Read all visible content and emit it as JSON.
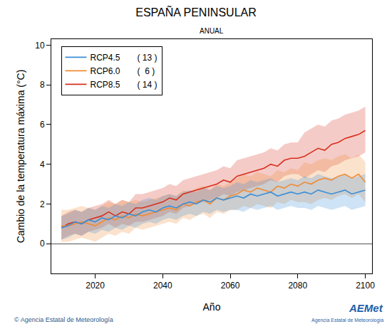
{
  "chart_data": {
    "type": "line",
    "title": "ESPAÑA PENINSULAR",
    "subtitle": "ANUAL",
    "x_label": "Año",
    "y_label": "Cambio de la temperatura máxima (°C)",
    "source": "© Agencia Estatal de Meteorología",
    "logo": "AEMet",
    "logo_caption": "Agencia Estatal de Meteorología",
    "x": [
      2010,
      2012,
      2014,
      2016,
      2018,
      2020,
      2022,
      2024,
      2026,
      2028,
      2030,
      2032,
      2034,
      2036,
      2038,
      2040,
      2042,
      2044,
      2046,
      2048,
      2050,
      2052,
      2054,
      2056,
      2058,
      2060,
      2062,
      2064,
      2066,
      2068,
      2070,
      2072,
      2074,
      2076,
      2078,
      2080,
      2082,
      2084,
      2086,
      2088,
      2090,
      2092,
      2094,
      2096,
      2098,
      2100
    ],
    "xlim": [
      2007,
      2102
    ],
    "xticks": [
      2020,
      2040,
      2060,
      2080,
      2100
    ],
    "ylim": [
      -1.5,
      10.3
    ],
    "yticks": [
      0,
      2,
      4,
      6,
      8,
      10
    ],
    "grid": false,
    "legend": "top left",
    "series": [
      {
        "name": "RCP8.5",
        "count_label": "( 14 )",
        "color": "#d7301f",
        "values": [
          0.8,
          1.0,
          1.1,
          1.0,
          1.2,
          1.3,
          1.4,
          1.6,
          1.4,
          1.6,
          1.5,
          1.8,
          1.8,
          1.9,
          2.0,
          2.1,
          2.3,
          2.2,
          2.5,
          2.6,
          2.7,
          2.8,
          2.9,
          3.0,
          3.2,
          3.1,
          3.4,
          3.5,
          3.6,
          3.7,
          3.8,
          4.0,
          3.9,
          4.2,
          4.3,
          4.3,
          4.4,
          4.6,
          4.8,
          4.7,
          5.0,
          5.1,
          5.3,
          5.4,
          5.5,
          5.7
        ],
        "lower": [
          0.2,
          0.4,
          0.5,
          0.4,
          0.6,
          0.7,
          0.8,
          1.0,
          0.8,
          1.0,
          0.9,
          1.1,
          1.1,
          1.2,
          1.3,
          1.4,
          1.6,
          1.5,
          1.8,
          1.9,
          2.0,
          2.1,
          2.2,
          2.3,
          2.5,
          2.4,
          2.6,
          2.7,
          2.8,
          2.9,
          3.0,
          3.2,
          3.1,
          3.4,
          3.5,
          3.5,
          3.3,
          3.5,
          3.7,
          3.6,
          3.9,
          4.0,
          4.2,
          4.3,
          4.4,
          4.6
        ],
        "upper": [
          1.4,
          1.6,
          1.7,
          1.6,
          1.8,
          1.9,
          2.0,
          2.2,
          2.0,
          2.2,
          2.1,
          2.5,
          2.5,
          2.6,
          2.7,
          2.8,
          3.0,
          2.9,
          3.2,
          3.3,
          3.4,
          3.5,
          3.6,
          3.7,
          3.9,
          3.8,
          4.2,
          4.3,
          4.4,
          4.5,
          4.6,
          4.8,
          4.7,
          5.0,
          5.1,
          5.1,
          5.6,
          5.8,
          6.0,
          5.9,
          6.2,
          6.3,
          6.5,
          6.6,
          6.7,
          6.9
        ]
      },
      {
        "name": "RCP6.0",
        "count_label": "(  6 )",
        "color": "#f08b33",
        "values": [
          0.9,
          0.9,
          1.0,
          1.1,
          1.0,
          0.9,
          1.1,
          1.3,
          1.2,
          1.4,
          1.3,
          1.5,
          1.4,
          1.5,
          1.6,
          1.7,
          1.8,
          1.7,
          2.0,
          1.9,
          2.1,
          2.2,
          2.0,
          2.3,
          2.2,
          2.4,
          2.5,
          2.7,
          2.6,
          2.8,
          2.7,
          2.6,
          2.9,
          2.8,
          3.0,
          2.9,
          3.1,
          3.0,
          3.2,
          3.3,
          3.2,
          3.4,
          3.5,
          3.3,
          3.5,
          3.1
        ],
        "lower": [
          0.1,
          0.1,
          0.2,
          0.3,
          0.2,
          0.1,
          0.3,
          0.5,
          0.4,
          0.6,
          0.5,
          0.8,
          0.7,
          0.8,
          0.9,
          1.0,
          1.1,
          1.0,
          1.3,
          1.2,
          1.4,
          1.5,
          1.3,
          1.6,
          1.5,
          1.7,
          1.7,
          1.9,
          1.8,
          2.0,
          1.9,
          1.8,
          2.1,
          2.0,
          2.2,
          2.1,
          2.1,
          2.0,
          2.2,
          2.3,
          2.2,
          2.4,
          2.5,
          2.3,
          2.5,
          2.1
        ],
        "upper": [
          1.7,
          1.7,
          1.8,
          1.9,
          1.8,
          1.7,
          1.9,
          2.1,
          2.0,
          2.2,
          2.1,
          2.2,
          2.1,
          2.2,
          2.3,
          2.4,
          2.5,
          2.4,
          2.7,
          2.6,
          2.8,
          2.9,
          2.7,
          3.0,
          2.9,
          3.1,
          3.3,
          3.5,
          3.4,
          3.6,
          3.5,
          3.4,
          3.7,
          3.6,
          3.8,
          3.7,
          4.1,
          4.0,
          4.2,
          4.3,
          4.2,
          4.4,
          4.5,
          4.3,
          4.5,
          4.1
        ]
      },
      {
        "name": "RCP4.5",
        "count_label": "( 13 )",
        "color": "#3d8fd6",
        "values": [
          0.8,
          0.9,
          1.1,
          1.0,
          1.2,
          1.1,
          1.3,
          1.2,
          1.4,
          1.3,
          1.5,
          1.4,
          1.6,
          1.7,
          1.6,
          1.8,
          1.9,
          1.8,
          2.0,
          2.1,
          2.0,
          2.2,
          2.1,
          2.3,
          2.2,
          2.3,
          2.4,
          2.3,
          2.5,
          2.4,
          2.5,
          2.6,
          2.4,
          2.5,
          2.6,
          2.5,
          2.6,
          2.5,
          2.7,
          2.6,
          2.5,
          2.6,
          2.7,
          2.5,
          2.6,
          2.7
        ],
        "lower": [
          0.2,
          0.3,
          0.5,
          0.4,
          0.6,
          0.5,
          0.7,
          0.6,
          0.8,
          0.7,
          0.9,
          0.8,
          1.0,
          1.1,
          1.0,
          1.2,
          1.3,
          1.2,
          1.4,
          1.5,
          1.4,
          1.6,
          1.5,
          1.7,
          1.6,
          1.7,
          1.7,
          1.6,
          1.8,
          1.7,
          1.8,
          1.9,
          1.7,
          1.8,
          1.9,
          1.8,
          1.8,
          1.7,
          1.9,
          1.8,
          1.7,
          1.8,
          1.9,
          1.7,
          1.8,
          1.9
        ],
        "upper": [
          1.4,
          1.5,
          1.7,
          1.6,
          1.8,
          1.7,
          1.9,
          1.8,
          2.0,
          1.9,
          2.1,
          2.0,
          2.2,
          2.3,
          2.2,
          2.4,
          2.5,
          2.4,
          2.6,
          2.7,
          2.6,
          2.8,
          2.7,
          2.9,
          2.8,
          2.9,
          3.1,
          3.0,
          3.2,
          3.1,
          3.2,
          3.3,
          3.1,
          3.2,
          3.3,
          3.2,
          3.4,
          3.3,
          3.5,
          3.4,
          3.3,
          3.4,
          3.5,
          3.3,
          3.4,
          3.5
        ]
      }
    ]
  }
}
